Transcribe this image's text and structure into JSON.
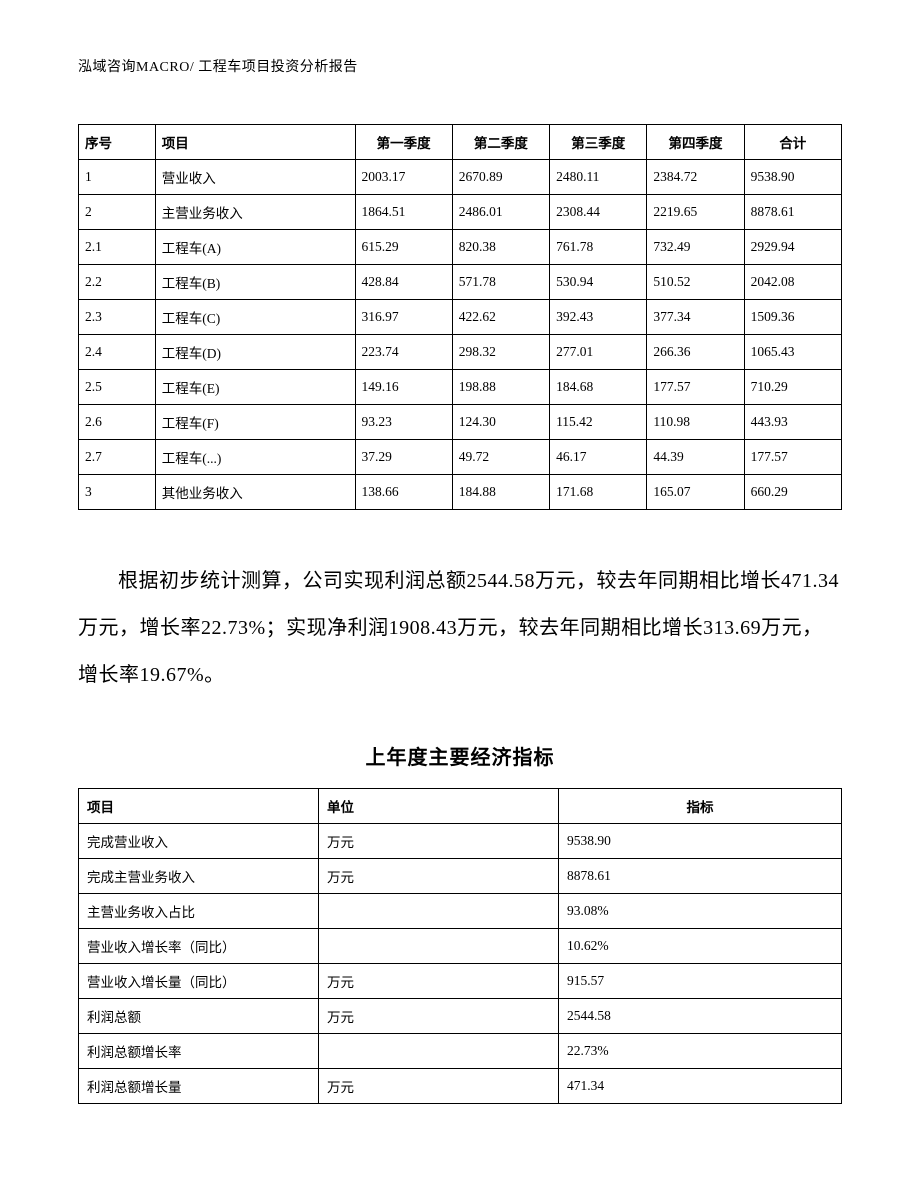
{
  "header": {
    "text": "泓域咨询MACRO/   工程车项目投资分析报告"
  },
  "table1": {
    "columns": {
      "seq": "序号",
      "item": "项目",
      "q1": "第一季度",
      "q2": "第二季度",
      "q3": "第三季度",
      "q4": "第四季度",
      "total": "合计"
    },
    "rows": [
      {
        "seq": "1",
        "item": "营业收入",
        "q1": "2003.17",
        "q2": "2670.89",
        "q3": "2480.11",
        "q4": "2384.72",
        "total": "9538.90"
      },
      {
        "seq": "2",
        "item": "主营业务收入",
        "q1": "1864.51",
        "q2": "2486.01",
        "q3": "2308.44",
        "q4": "2219.65",
        "total": "8878.61"
      },
      {
        "seq": "2.1",
        "item": "工程车(A)",
        "q1": "615.29",
        "q2": "820.38",
        "q3": "761.78",
        "q4": "732.49",
        "total": "2929.94"
      },
      {
        "seq": "2.2",
        "item": "工程车(B)",
        "q1": "428.84",
        "q2": "571.78",
        "q3": "530.94",
        "q4": "510.52",
        "total": "2042.08"
      },
      {
        "seq": "2.3",
        "item": "工程车(C)",
        "q1": "316.97",
        "q2": "422.62",
        "q3": "392.43",
        "q4": "377.34",
        "total": "1509.36"
      },
      {
        "seq": "2.4",
        "item": "工程车(D)",
        "q1": "223.74",
        "q2": "298.32",
        "q3": "277.01",
        "q4": "266.36",
        "total": "1065.43"
      },
      {
        "seq": "2.5",
        "item": "工程车(E)",
        "q1": "149.16",
        "q2": "198.88",
        "q3": "184.68",
        "q4": "177.57",
        "total": "710.29"
      },
      {
        "seq": "2.6",
        "item": "工程车(F)",
        "q1": "93.23",
        "q2": "124.30",
        "q3": "115.42",
        "q4": "110.98",
        "total": "443.93"
      },
      {
        "seq": "2.7",
        "item": "工程车(...)",
        "q1": "37.29",
        "q2": "49.72",
        "q3": "46.17",
        "q4": "44.39",
        "total": "177.57"
      },
      {
        "seq": "3",
        "item": "其他业务收入",
        "q1": "138.66",
        "q2": "184.88",
        "q3": "171.68",
        "q4": "165.07",
        "total": "660.29"
      }
    ]
  },
  "paragraph": {
    "text": "根据初步统计测算，公司实现利润总额2544.58万元，较去年同期相比增长471.34万元，增长率22.73%；实现净利润1908.43万元，较去年同期相比增长313.69万元，增长率19.67%。"
  },
  "table2": {
    "title": "上年度主要经济指标",
    "columns": {
      "item": "项目",
      "unit": "单位",
      "value": "指标"
    },
    "rows": [
      {
        "item": "完成营业收入",
        "unit": "万元",
        "value": "9538.90"
      },
      {
        "item": "完成主营业务收入",
        "unit": "万元",
        "value": "8878.61"
      },
      {
        "item": "主营业务收入占比",
        "unit": "",
        "value": "93.08%"
      },
      {
        "item": "营业收入增长率（同比）",
        "unit": "",
        "value": "10.62%"
      },
      {
        "item": "营业收入增长量（同比）",
        "unit": "万元",
        "value": "915.57"
      },
      {
        "item": "利润总额",
        "unit": "万元",
        "value": "2544.58"
      },
      {
        "item": "利润总额增长率",
        "unit": "",
        "value": "22.73%"
      },
      {
        "item": "利润总额增长量",
        "unit": "万元",
        "value": "471.34"
      }
    ]
  }
}
